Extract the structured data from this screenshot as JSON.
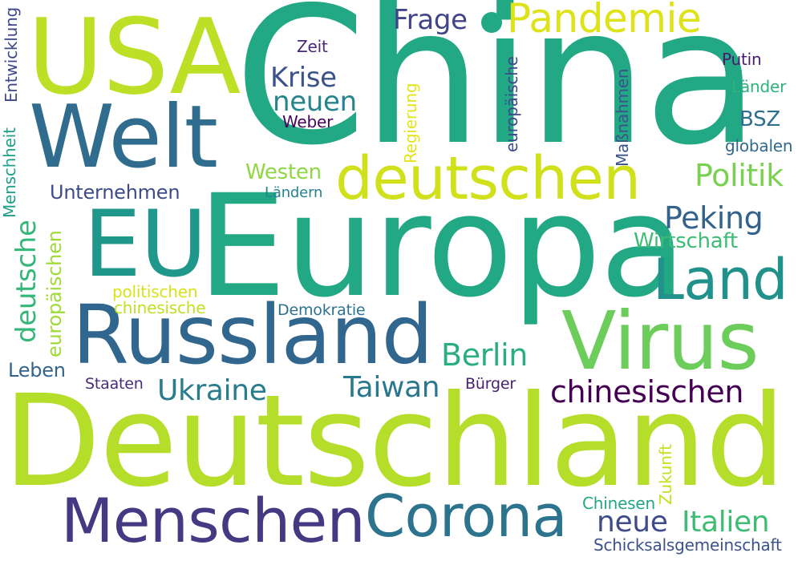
{
  "cloud": {
    "words": {
      "china": {
        "text": "China",
        "color": "#22a884"
      },
      "deutschland": {
        "text": "Deutschland",
        "color": "#b5de2b"
      },
      "europa": {
        "text": "Europa",
        "color": "#22a884"
      },
      "usa": {
        "text": "USA",
        "color": "#bddf26"
      },
      "welt": {
        "text": "Welt",
        "color": "#2f6c8e"
      },
      "eu": {
        "text": "EU",
        "color": "#1f988b"
      },
      "russland": {
        "text": "Russland",
        "color": "#31668e"
      },
      "virus": {
        "text": "Virus",
        "color": "#6ccd5a"
      },
      "deutschen": {
        "text": "deutschen",
        "color": "#d0e11c"
      },
      "menschen": {
        "text": "Menschen",
        "color": "#443a83"
      },
      "corona": {
        "text": "Corona",
        "color": "#2c738e"
      },
      "pandemie": {
        "text": "Pandemie",
        "color": "#dde318"
      },
      "land": {
        "text": "Land",
        "color": "#21918c"
      },
      "frage": {
        "text": "Frage",
        "color": "#414487"
      },
      "krise": {
        "text": "Krise",
        "color": "#3b528b"
      },
      "neuen": {
        "text": "neuen",
        "color": "#25858e"
      },
      "politik": {
        "text": "Politik",
        "color": "#7ad151"
      },
      "peking": {
        "text": "Peking",
        "color": "#33638d"
      },
      "berlin": {
        "text": "Berlin",
        "color": "#29af7f"
      },
      "ukraine": {
        "text": "Ukraine",
        "color": "#287c8e"
      },
      "taiwan": {
        "text": "Taiwan",
        "color": "#2a788e"
      },
      "chinesischen": {
        "text": "chinesischen",
        "color": "#440154"
      },
      "deutsche": {
        "text": "deutsche",
        "color": "#35b779"
      },
      "europaeischen": {
        "text": "europäischen",
        "color": "#a0da39"
      },
      "italien": {
        "text": "Italien",
        "color": "#3fbc73"
      },
      "neue": {
        "text": "neue",
        "color": "#3e4a89"
      },
      "unternehmen": {
        "text": "Unternehmen",
        "color": "#3e4c8a"
      },
      "westen": {
        "text": "Westen",
        "color": "#8fd744"
      },
      "wirtschaft": {
        "text": "Wirtschaft",
        "color": "#3dbc74"
      },
      "bsz": {
        "text": "BSZ",
        "color": "#2e6e8e"
      },
      "leben": {
        "text": "Leben",
        "color": "#32648e"
      },
      "zeit": {
        "text": "Zeit",
        "color": "#482878"
      },
      "putin": {
        "text": "Putin",
        "color": "#481b6d"
      },
      "laender_cap": {
        "text": "Länder",
        "color": "#2db27d"
      },
      "globalen": {
        "text": "globalen",
        "color": "#30698e"
      },
      "weber": {
        "text": "Weber",
        "color": "#450559"
      },
      "laendern": {
        "text": "Ländern",
        "color": "#26828e"
      },
      "politischen": {
        "text": "politischen",
        "color": "#d8e219"
      },
      "chinesische": {
        "text": "chinesische",
        "color": "#c2df23"
      },
      "demokratie": {
        "text": "Demokratie",
        "color": "#2c718e"
      },
      "staaten": {
        "text": "Staaten",
        "color": "#472d7b"
      },
      "buerger": {
        "text": "Bürger",
        "color": "#482173"
      },
      "chinesen": {
        "text": "Chinesen",
        "color": "#22a785"
      },
      "schicksalsgemeinschaft": {
        "text": "Schicksalsgemeinschaft",
        "color": "#3b528b"
      },
      "entwicklung": {
        "text": "Entwicklung",
        "color": "#3f4788"
      },
      "menschheit": {
        "text": "Menschheit",
        "color": "#1fa088"
      },
      "regierung": {
        "text": "Regierung",
        "color": "#e5e419"
      },
      "europaeische": {
        "text": "europäische",
        "color": "#3e4989"
      },
      "massnahmen": {
        "text": "Maßnahmen",
        "color": "#3b528b"
      },
      "zukunft": {
        "text": "Zukunft",
        "color": "#c8e020"
      }
    }
  }
}
